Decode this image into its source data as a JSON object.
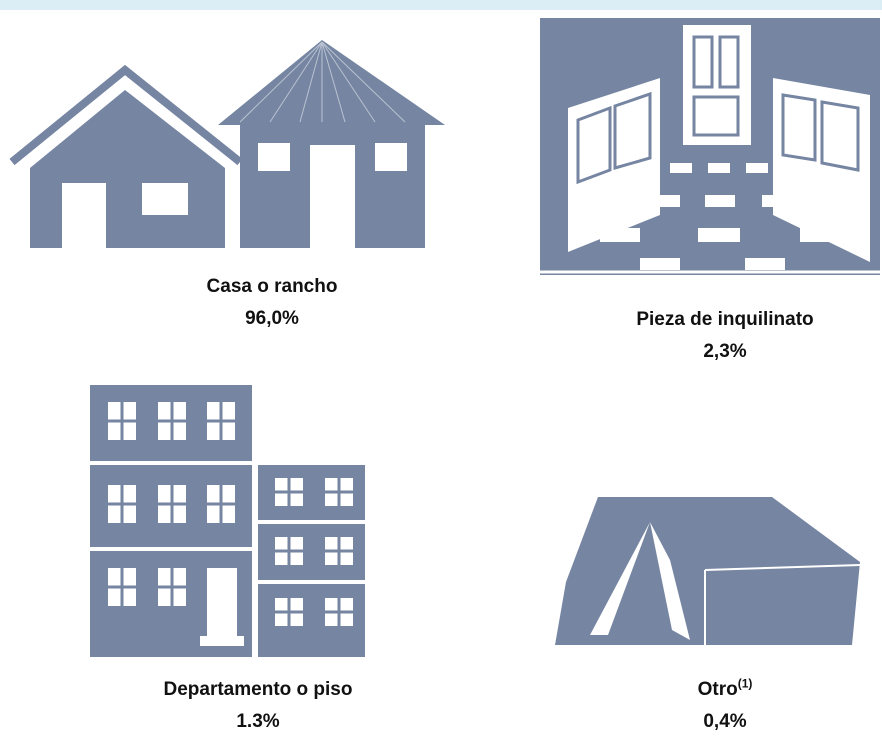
{
  "items": [
    {
      "label": "Casa o rancho",
      "value": "96,0%"
    },
    {
      "label": "Pieza de inquilinato",
      "value": "2,3%"
    },
    {
      "label": "Departamento o piso",
      "value": "1.3%"
    },
    {
      "label": "Otro",
      "superscript": "(1)",
      "value": "0,4%"
    }
  ]
}
